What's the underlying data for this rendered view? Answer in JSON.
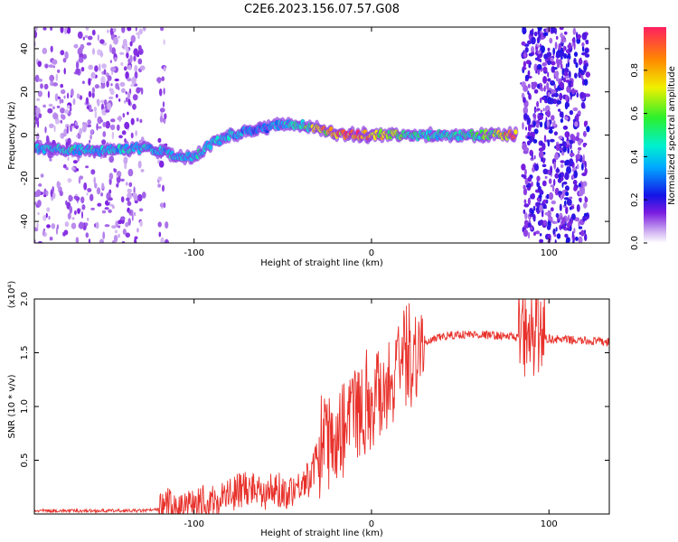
{
  "title": "C2E6.2023.156.07.57.G08",
  "chart_data": [
    {
      "type": "heatmap",
      "xlabel": "Height of straight line (km)",
      "ylabel": "Frequency (Hz)",
      "xlim": [
        -190,
        134
      ],
      "ylim": [
        -50,
        50
      ],
      "x_ticks": [
        -100,
        0,
        100
      ],
      "x_tick_labels": [
        "-100",
        "0",
        "100"
      ],
      "y_ticks": [
        -40,
        -20,
        0,
        20,
        40
      ],
      "y_tick_labels": [
        "-40",
        "-20",
        "0",
        "20",
        "40"
      ],
      "colorbar": {
        "label": "Normalized spectral amplitude",
        "range": [
          0,
          1
        ],
        "ticks": [
          0,
          0.2,
          0.4,
          0.6,
          0.8
        ],
        "tick_labels": [
          "0.0",
          "0.2",
          "0.4",
          "0.6",
          "0.8"
        ]
      },
      "ridge": {
        "x": [
          -190,
          -170,
          -150,
          -130,
          -120,
          -110,
          -100,
          -90,
          -80,
          -70,
          -60,
          -50,
          -40,
          -30,
          -20,
          -10,
          0,
          20,
          40,
          60,
          80,
          82
        ],
        "freq": [
          -6,
          -7,
          -7,
          -6,
          -7,
          -10,
          -10,
          -4,
          0,
          2,
          3,
          5,
          5,
          3,
          1,
          0,
          0,
          0,
          0,
          0,
          0,
          2
        ],
        "amplitude": [
          0.35,
          0.45,
          0.4,
          0.4,
          0.4,
          0.4,
          0.45,
          0.4,
          0.4,
          0.35,
          0.3,
          0.4,
          0.5,
          0.7,
          0.85,
          0.95,
          0.8,
          0.5,
          0.45,
          0.5,
          0.85,
          0.6
        ]
      },
      "noise_bands": [
        [
          -190,
          -128
        ],
        [
          -120,
          -115
        ],
        [
          85,
          122
        ]
      ]
    },
    {
      "type": "line",
      "xlabel": "Height of straight line (km)",
      "ylabel": "SNR (10 * v/v)",
      "y_scale_label": "(x10⁴)",
      "xlim": [
        -190,
        134
      ],
      "ylim": [
        0,
        2.0
      ],
      "x_ticks": [
        -100,
        0,
        100
      ],
      "x_tick_labels": [
        "-100",
        "0",
        "100"
      ],
      "y_ticks": [
        0.5,
        1.0,
        1.5,
        2.0
      ],
      "y_tick_labels": [
        "0.5",
        "1.0",
        "1.5",
        "2.0"
      ],
      "color": "#e8302a",
      "series": [
        {
          "x": [
            -190,
            -170,
            -150,
            -130,
            -120,
            -118,
            -110,
            -100,
            -90,
            -80,
            -70,
            -60,
            -50,
            -40,
            -35,
            -30,
            -25,
            -20,
            -15,
            -10,
            -5,
            0,
            5,
            10,
            15,
            20,
            25,
            30,
            35,
            40,
            50,
            60,
            70,
            80,
            85,
            90,
            95,
            100,
            110,
            120,
            134
          ],
          "y": [
            0.03,
            0.03,
            0.03,
            0.03,
            0.04,
            0.1,
            0.05,
            0.06,
            0.1,
            0.18,
            0.25,
            0.22,
            0.2,
            0.28,
            0.35,
            0.55,
            0.75,
            0.7,
            0.9,
            0.95,
            1.0,
            1.05,
            1.2,
            1.25,
            1.35,
            1.45,
            1.52,
            1.58,
            1.62,
            1.65,
            1.67,
            1.67,
            1.66,
            1.65,
            1.63,
            1.65,
            1.64,
            1.63,
            1.62,
            1.61,
            1.6
          ]
        }
      ]
    }
  ]
}
